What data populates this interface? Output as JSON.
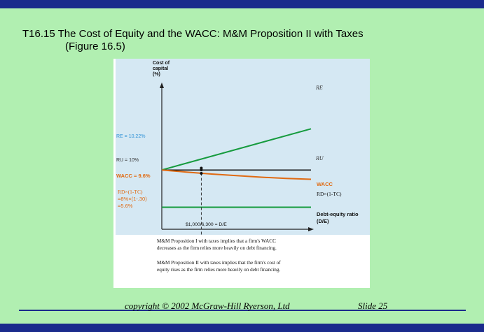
{
  "slide": {
    "title_line1": "T16.15   The Cost of Equity and the WACC: M&M Proposition II with Taxes",
    "title_line2": "(Figure 16.5)",
    "copyright": "copyright © 2002 McGraw-Hill Ryerson, Ltd",
    "slide_number": "Slide 25"
  },
  "colors": {
    "frame": "#1a2b8c",
    "background": "#b1efb1",
    "plot_area": "#d5e8f3",
    "re_line": "#169b3e",
    "ru_line": "#111111",
    "wacc_line": "#e06a12",
    "rd_line": "#169b3e"
  },
  "chart_data": {
    "type": "line",
    "ylabel": "Cost of capital (%)",
    "xlabel": "Debt-equity ratio (D/E)",
    "x_marker": "$1,000/6,300 = D/E",
    "x_marker_value": 0.159,
    "xlim": [
      0,
      0.6
    ],
    "ylim": [
      3,
      20
    ],
    "series": [
      {
        "name": "RE",
        "label": "R_E",
        "x": [
          0,
          0.6
        ],
        "values": [
          10.0,
          14.86
        ],
        "color_key": "re_line"
      },
      {
        "name": "RU",
        "label": "R_U",
        "x": [
          0,
          0.6
        ],
        "values": [
          10.0,
          10.0
        ],
        "color_key": "ru_line"
      },
      {
        "name": "WACC",
        "label": "WACC",
        "x": [
          0,
          0.1,
          0.2,
          0.3,
          0.4,
          0.5,
          0.6
        ],
        "values": [
          10.0,
          9.75,
          9.52,
          9.33,
          9.15,
          9.0,
          8.9
        ],
        "color_key": "wacc_line"
      },
      {
        "name": "RD(1-TC)",
        "label": "RD×(1-TC)",
        "x": [
          0,
          0.6
        ],
        "values": [
          5.6,
          5.6
        ],
        "color_key": "rd_line"
      }
    ],
    "points": [
      {
        "name": "re-point",
        "x": 0.159,
        "y": 10.22
      },
      {
        "name": "ru-point",
        "x": 0.159,
        "y": 10.0
      },
      {
        "name": "wacc-point",
        "x": 0.159,
        "y": 9.6
      }
    ],
    "labels": {
      "y_axis_title_1": "Cost of",
      "y_axis_title_2": "capital",
      "y_axis_title_3": "(%)",
      "re_value": "RE = 10.22%",
      "ru_value": "RU = 10%",
      "wacc_value": "WACC = 9.6%",
      "rd_formula_1": "RD×(1-TC)",
      "rd_formula_2": "=8%×(1-.30)",
      "rd_formula_3": "=5.6%",
      "re_end": "RE",
      "ru_end": "RU",
      "wacc_end": "WACC",
      "rd_end": "RD×(1-TC)",
      "x_axis_title_1": "Debt-equity ratio",
      "x_axis_title_2": "(D/E)",
      "x_marker": "$1,000/6,300 = D/E"
    },
    "notes": [
      "M&M Proposition I with taxes implies that a firm's WACC",
      "decreases as the firm relies more heavily on debt financing.",
      "M&M Proposition II with taxes implies that the firm's cost of",
      "equity rises as the firm relies more heavily on debt financing."
    ]
  }
}
